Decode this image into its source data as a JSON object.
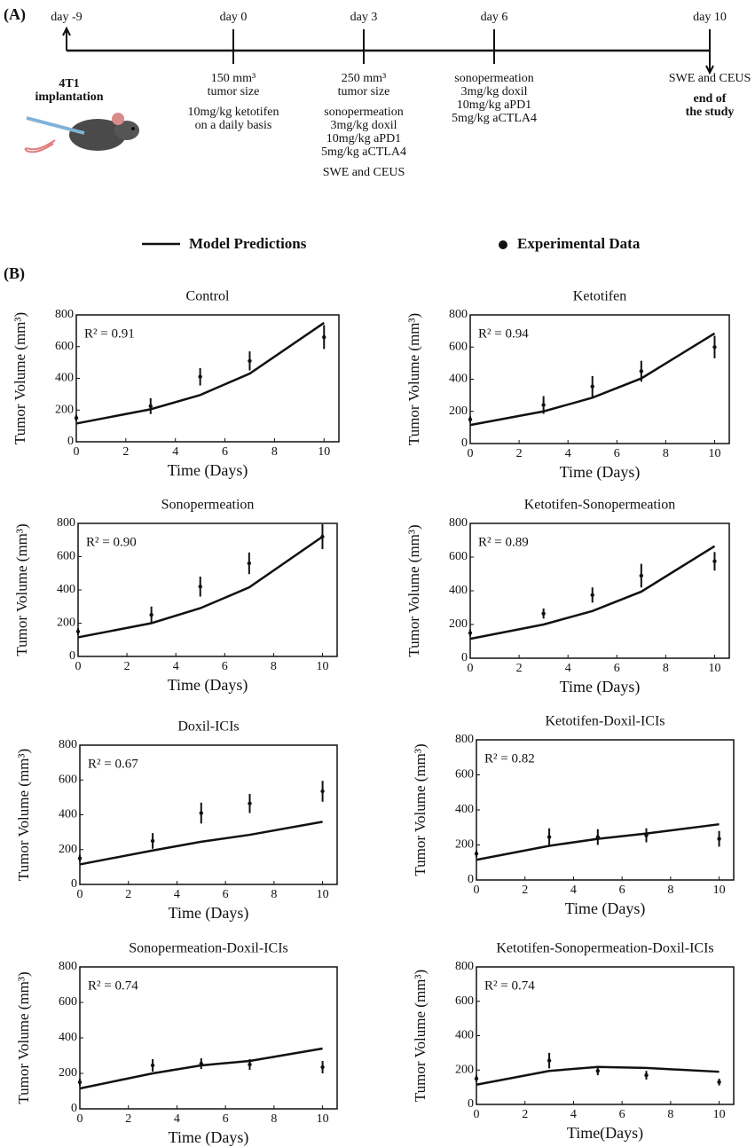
{
  "panel_labels": [
    "(A)",
    "(B)"
  ],
  "timeline": {
    "events": [
      {
        "day": "day -9",
        "groups": [
          {
            "lines": [
              "4T1",
              "implantation"
            ],
            "bold": true
          }
        ]
      },
      {
        "day": "day 0",
        "groups": [
          {
            "lines": [
              "150 mm³",
              "tumor size"
            ]
          },
          {
            "lines": [
              "10mg/kg ketotifen",
              "on a daily basis"
            ]
          }
        ]
      },
      {
        "day": "day 3",
        "groups": [
          {
            "lines": [
              "250 mm³",
              "tumor size"
            ]
          },
          {
            "lines": [
              "sonopermeation",
              "3mg/kg doxil",
              "10mg/kg aPD1",
              "5mg/kg aCTLA4"
            ]
          },
          {
            "lines": [
              "SWE and CEUS"
            ]
          }
        ]
      },
      {
        "day": "day 6",
        "groups": [
          {
            "lines": [
              "sonopermeation",
              "3mg/kg doxil",
              "10mg/kg aPD1",
              "5mg/kg aCTLA4"
            ]
          }
        ]
      },
      {
        "day": "day 10",
        "groups": [
          {
            "lines": [
              "SWE and CEUS"
            ]
          },
          {
            "lines": [
              "end of",
              "the study"
            ],
            "bold": true
          }
        ]
      }
    ]
  },
  "legend": {
    "line": "Model Predictions",
    "points": "Experimental Data",
    "color": "#111111"
  },
  "chart_data": [
    {
      "type": "line",
      "title": "Control",
      "annotation": "R² = 0.91",
      "xlabel": "Time (Days)",
      "ylabel": "Tumor Volume (mm³)",
      "x": [
        0,
        3,
        5,
        7,
        10
      ],
      "model": [
        115,
        205,
        295,
        430,
        750
      ],
      "data": [
        150,
        225,
        410,
        510,
        660
      ],
      "errors": [
        20,
        50,
        55,
        60,
        75
      ],
      "xlim": [
        0,
        10.6
      ],
      "xticks": [
        0,
        2,
        4,
        6,
        8,
        10
      ],
      "ylim": [
        0,
        800
      ],
      "yticks": [
        0,
        200,
        400,
        600,
        800
      ]
    },
    {
      "type": "line",
      "title": "Ketotifen",
      "annotation": "R² = 0.94",
      "xlabel": "Time (Days)",
      "ylabel": "Tumor Volume (mm³)",
      "x": [
        0,
        3,
        5,
        7,
        10
      ],
      "model": [
        115,
        200,
        285,
        405,
        685
      ],
      "data": [
        150,
        240,
        355,
        450,
        600
      ],
      "errors": [
        20,
        55,
        65,
        65,
        70
      ],
      "xlim": [
        0,
        10.6
      ],
      "xticks": [
        0,
        2,
        4,
        6,
        8,
        10
      ],
      "ylim": [
        0,
        800
      ],
      "yticks": [
        0,
        200,
        400,
        600,
        800
      ]
    },
    {
      "type": "line",
      "title": "Sonopermeation",
      "annotation": "R² = 0.90",
      "xlabel": "Time (Days)",
      "ylabel": "Tumor Volume (mm³)",
      "x": [
        0,
        3,
        5,
        7,
        10
      ],
      "model": [
        115,
        200,
        290,
        415,
        720
      ],
      "data": [
        150,
        250,
        420,
        560,
        720
      ],
      "errors": [
        20,
        50,
        60,
        65,
        75
      ],
      "xlim": [
        0,
        10.6
      ],
      "xticks": [
        0,
        2,
        4,
        6,
        8,
        10
      ],
      "ylim": [
        0,
        800
      ],
      "yticks": [
        0,
        200,
        400,
        600,
        800
      ]
    },
    {
      "type": "line",
      "title": "Ketotifen-Sonopermeation",
      "annotation": "R² = 0.89",
      "xlabel": "Time (Days)",
      "ylabel": "Tumor Volume (mm³)",
      "x": [
        0,
        3,
        5,
        7,
        10
      ],
      "model": [
        115,
        200,
        280,
        395,
        665
      ],
      "data": [
        150,
        265,
        375,
        490,
        575
      ],
      "errors": [
        20,
        30,
        45,
        70,
        55
      ],
      "xlim": [
        0,
        10.6
      ],
      "xticks": [
        0,
        2,
        4,
        6,
        8,
        10
      ],
      "ylim": [
        0,
        800
      ],
      "yticks": [
        0,
        200,
        400,
        600,
        800
      ]
    },
    {
      "type": "line",
      "title": "Doxil-ICIs",
      "annotation": "R² = 0.67",
      "xlabel": "Time (Days)",
      "ylabel": "Tumor Volume (mm³)",
      "x": [
        0,
        3,
        5,
        7,
        10
      ],
      "model": [
        115,
        195,
        245,
        285,
        360
      ],
      "data": [
        150,
        250,
        410,
        465,
        535
      ],
      "errors": [
        20,
        45,
        60,
        55,
        60
      ],
      "xlim": [
        0,
        10.6
      ],
      "xticks": [
        0,
        2,
        4,
        6,
        8,
        10
      ],
      "ylim": [
        0,
        800
      ],
      "yticks": [
        0,
        200,
        400,
        600,
        800
      ]
    },
    {
      "type": "line",
      "title": "Ketotifen-Doxil-ICIs",
      "annotation": "R² = 0.82",
      "xlabel": "Time (Days)",
      "ylabel": "Tumor Volume (mm³)",
      "x": [
        0,
        3,
        5,
        7,
        10
      ],
      "model": [
        115,
        195,
        235,
        265,
        318
      ],
      "data": [
        150,
        245,
        245,
        255,
        235
      ],
      "errors": [
        20,
        50,
        45,
        40,
        45
      ],
      "xlim": [
        0,
        10.6
      ],
      "xticks": [
        0,
        2,
        4,
        6,
        8,
        10
      ],
      "ylim": [
        0,
        800
      ],
      "yticks": [
        0,
        200,
        400,
        600,
        800
      ]
    },
    {
      "type": "line",
      "title": "Sonopermeation-Doxil-ICIs",
      "annotation": "R² = 0.74",
      "xlabel": "Time (Days)",
      "ylabel": "Tumor Volume (mm³)",
      "x": [
        0,
        3,
        5,
        7,
        10
      ],
      "model": [
        115,
        200,
        245,
        270,
        340
      ],
      "data": [
        150,
        245,
        255,
        250,
        235
      ],
      "errors": [
        20,
        35,
        30,
        30,
        35
      ],
      "xlim": [
        0,
        10.6
      ],
      "xticks": [
        0,
        2,
        4,
        6,
        8,
        10
      ],
      "ylim": [
        0,
        800
      ],
      "yticks": [
        0,
        200,
        400,
        600,
        800
      ]
    },
    {
      "type": "line",
      "title": "Ketotifen-Sonopermeation-Doxil-ICIs",
      "annotation": "R² = 0.74",
      "xlabel": "Time(Days)",
      "ylabel": "Tumor Volume (mm³)",
      "x": [
        0,
        3,
        5,
        7,
        10
      ],
      "model": [
        115,
        195,
        218,
        212,
        190
      ],
      "data": [
        150,
        255,
        195,
        170,
        130
      ],
      "errors": [
        20,
        45,
        25,
        25,
        20
      ],
      "xlim": [
        0,
        10.6
      ],
      "xticks": [
        0,
        2,
        4,
        6,
        8,
        10
      ],
      "ylim": [
        0,
        800
      ],
      "yticks": [
        0,
        200,
        400,
        600,
        800
      ]
    }
  ]
}
